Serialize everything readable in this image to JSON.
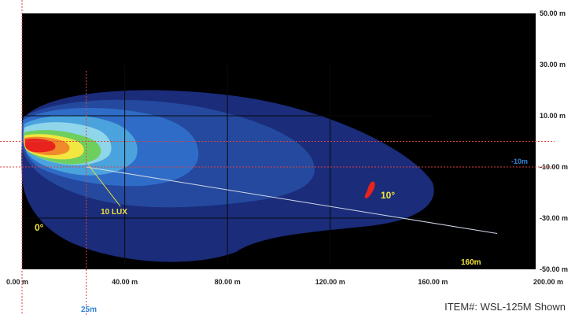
{
  "chart_data": {
    "type": "heatmap",
    "title": "",
    "xlabel": "",
    "ylabel": "",
    "xlim": [
      0,
      200
    ],
    "ylim": [
      -50,
      50
    ],
    "x_ticks": [
      "0.00 m",
      "40.00 m",
      "80.00 m",
      "120.00 m",
      "160.00 m",
      "200.00 m"
    ],
    "x_tick_values": [
      0,
      40,
      80,
      120,
      160,
      200
    ],
    "y_ticks": [
      "50.00 m",
      "30.00 m",
      "10.00 m",
      "-10.00 m",
      "-30.00 m",
      "-50.00 m"
    ],
    "y_tick_values": [
      50,
      30,
      10,
      -10,
      -30,
      -50
    ],
    "grid": true,
    "background_color": "#000000",
    "illuminance_levels_color_order": [
      "#1a2c7a",
      "#24499e",
      "#2f6cc7",
      "#4aa3dc",
      "#8fd6ea",
      "#6fcf5e",
      "#f2e640",
      "#f08a2a",
      "#e8231d"
    ],
    "annotations": {
      "lux_label": "10 LUX",
      "angle_zero": "0°",
      "angle_ten": "10°",
      "range_label": "160m",
      "offset_label": "-10m",
      "distance_marker": "25m"
    },
    "reference_lines": {
      "horizontal_dashed_y": [
        0,
        -10
      ],
      "vertical_dashed_x": [
        0,
        25
      ],
      "beam_line_10deg": {
        "from": [
          25,
          -10
        ],
        "to": [
          185,
          -36
        ]
      }
    }
  },
  "footer": {
    "item_text": "ITEM#: WSL-125M Shown"
  }
}
